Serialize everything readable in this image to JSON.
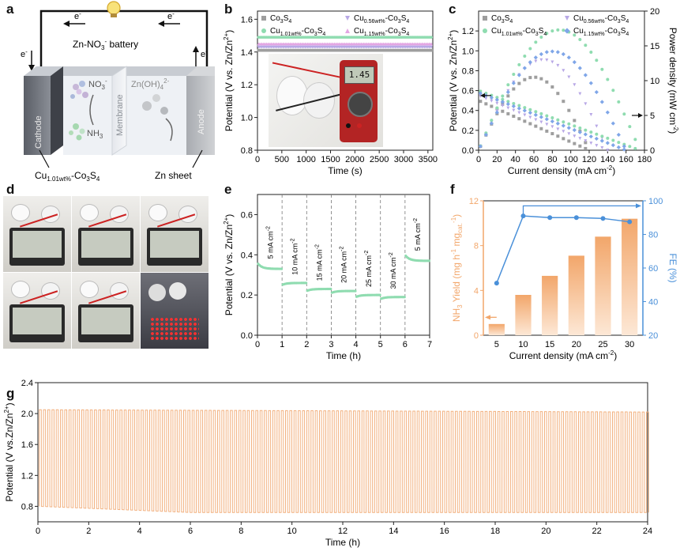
{
  "panels": {
    "a": {
      "letter": "a",
      "title": "Zn-NO",
      "title_sub": "3",
      "title_sup": "-",
      "title_tail": " battery",
      "electron": "e",
      "electron_sup": "-",
      "cathode": "Cathode",
      "membrane": "Membrane",
      "anode": "Anode",
      "no3": "NO",
      "no3_sub": "3",
      "no3_sup": "-",
      "nh3": "NH",
      "nh3_sub": "3",
      "znoh": "Zn(OH)",
      "znoh_sub": "4",
      "znoh_sup": "2-",
      "cathode_label": "Cu",
      "cathode_label_sub": "1.01wt%",
      "cathode_label_tail": "-Co",
      "cathode_label_sub2": "3",
      "cathode_label_s": "S",
      "cathode_label_sub3": "4",
      "anode_label": "Zn sheet"
    },
    "b": {
      "letter": "b",
      "meter_reading": "1.45"
    },
    "c": {
      "letter": "c"
    },
    "d": {
      "letter": "d"
    },
    "e": {
      "letter": "e"
    },
    "f": {
      "letter": "f"
    },
    "g": {
      "letter": "g"
    }
  },
  "colors": {
    "co3s4": "#9e9e9e",
    "cu056": "#b8a8e6",
    "cu101": "#8fdcb0",
    "cu115": "#7fa6e8",
    "orange": "#f2a66a",
    "blue": "#4a90d9",
    "gcd": "#f2b07e"
  },
  "chart_data": [
    {
      "panel": "b",
      "type": "line",
      "xlabel": "Time (s)",
      "ylabel": "Potential (V vs. Zn/Zn2+)",
      "xlim": [
        0,
        3600
      ],
      "ylim": [
        0.8,
        1.65
      ],
      "xticks": [
        0,
        500,
        1000,
        1500,
        2000,
        2500,
        3000,
        3500
      ],
      "yticks": [
        0.8,
        1.0,
        1.2,
        1.4,
        1.6
      ],
      "legend": [
        {
          "label": "Co3S4",
          "text": "Co",
          "sub": "3",
          "tail": "S",
          "sub2": "4",
          "marker": "square",
          "color": "#9e9e9e"
        },
        {
          "label": "Cu0.56wt%-Co3S4",
          "text": "Cu",
          "sub": "0.56wt%",
          "tail": "-Co",
          "sub2": "3",
          "tail2": "S",
          "sub3": "4",
          "marker": "tri-down",
          "color": "#b8a8e6"
        },
        {
          "label": "Cu1.01wt%-Co3S4",
          "text": "Cu",
          "sub": "1.01wt%",
          "tail": "-Co",
          "sub2": "3",
          "tail2": "S",
          "sub3": "4",
          "marker": "hexagon",
          "color": "#8fdcb0"
        },
        {
          "label": "Cu1.15wt%-Co3S4",
          "text": "Cu",
          "sub": "1.15wt%",
          "tail": "-Co",
          "sub2": "3",
          "tail2": "S",
          "sub3": "4",
          "marker": "tri-up",
          "color": "#e3a6e3"
        }
      ],
      "series": [
        {
          "name": "Co3S4",
          "y": 1.41
        },
        {
          "name": "Cu0.56wt%-Co3S4",
          "y": 1.43
        },
        {
          "name": "Cu1.01wt%-Co3S4",
          "y": 1.49
        },
        {
          "name": "Cu1.15wt%-Co3S4",
          "y": 1.45
        }
      ]
    },
    {
      "panel": "c",
      "type": "scatter",
      "xlabel": "Current density (mA cm-2)",
      "ylabel": "Potential (V vs. Zn/Zn2+)",
      "y2label": "Power density (mW cm-2)",
      "xlim": [
        0,
        180
      ],
      "ylim": [
        0,
        1.4
      ],
      "y2lim": [
        0,
        20
      ],
      "xticks": [
        0,
        20,
        40,
        60,
        80,
        100,
        120,
        140,
        160,
        180
      ],
      "yticks": [
        0.0,
        0.2,
        0.4,
        0.6,
        0.8,
        1.0,
        1.2
      ],
      "y2ticks": [
        0,
        5,
        10,
        15,
        20
      ],
      "legend": [
        {
          "label": "Co3S4",
          "text": "Co",
          "sub": "3",
          "tail": "S",
          "sub2": "4",
          "marker": "square",
          "color": "#9e9e9e"
        },
        {
          "label": "Cu0.56wt%-Co3S4",
          "text": "Cu",
          "sub": "0.56wt%",
          "tail": "-Co",
          "sub2": "3",
          "tail2": "S",
          "sub3": "4",
          "marker": "tri-down",
          "color": "#b8a8e6"
        },
        {
          "label": "Cu1.01wt%-Co3S4",
          "text": "Cu",
          "sub": "1.01wt%",
          "tail": "-Co",
          "sub2": "3",
          "tail2": "S",
          "sub3": "4",
          "marker": "hexagon",
          "color": "#8fdcb0"
        },
        {
          "label": "Cu1.15wt%-Co3S4",
          "text": "Cu",
          "sub": "1.15wt%",
          "tail": "-Co",
          "sub2": "3",
          "tail2": "S",
          "sub3": "4",
          "marker": "diamond",
          "color": "#7fa6e8"
        }
      ],
      "series": [
        {
          "name": "Co3S4",
          "imax": 120,
          "v0": 0.5,
          "peak_power": 10.5
        },
        {
          "name": "Cu0.56wt%-Co3S4",
          "imax": 140,
          "v0": 0.55,
          "peak_power": 13.0
        },
        {
          "name": "Cu1.01wt%-Co3S4",
          "imax": 175,
          "v0": 0.6,
          "peak_power": 17.3
        },
        {
          "name": "Cu1.15wt%-Co3S4",
          "imax": 160,
          "v0": 0.58,
          "peak_power": 14.2
        }
      ]
    },
    {
      "panel": "e",
      "type": "line",
      "xlabel": "Time (h)",
      "ylabel": "Potential (V vs. Zn/Zn2+)",
      "xlim": [
        0,
        7
      ],
      "ylim": [
        0.0,
        0.7
      ],
      "xticks": [
        0,
        1,
        2,
        3,
        4,
        5,
        6,
        7
      ],
      "yticks": [
        0.0,
        0.2,
        0.4,
        0.6
      ],
      "segments": [
        {
          "t0": 0,
          "t1": 1,
          "v": 0.33,
          "label": "5 mA cm-2",
          "text": "5 mA cm",
          "sup": "-2"
        },
        {
          "t0": 1,
          "t1": 2,
          "v": 0.25,
          "label": "10 mA cm-2",
          "text": "10 mA cm",
          "sup": "-2"
        },
        {
          "t0": 2,
          "t1": 3,
          "v": 0.22,
          "label": "15 mA cm-2",
          "text": "15 mA cm",
          "sup": "-2"
        },
        {
          "t0": 3,
          "t1": 4,
          "v": 0.21,
          "label": "20 mA cm-2",
          "text": "20 mA cm",
          "sup": "-2"
        },
        {
          "t0": 4,
          "t1": 5,
          "v": 0.19,
          "label": "25 mA cm-2",
          "text": "25 mA cm",
          "sup": "-2"
        },
        {
          "t0": 5,
          "t1": 6,
          "v": 0.18,
          "label": "30 mA cm-2",
          "text": "30 mA cm",
          "sup": "-2"
        },
        {
          "t0": 6,
          "t1": 7,
          "v": 0.37,
          "label": "5 mA cm-2",
          "text": "5 mA cm",
          "sup": "-2"
        }
      ]
    },
    {
      "panel": "f",
      "type": "bar",
      "xlabel": "Current density (mA cm-2)",
      "ylabel": "NH3 Yield (mg h-1 mgcat.-1)",
      "y2label": "FE (%)",
      "categories": [
        "5",
        "10",
        "15",
        "20",
        "25",
        "30"
      ],
      "ylim": [
        0,
        12
      ],
      "y2lim": [
        20,
        100
      ],
      "yticks": [
        0,
        4,
        8,
        12
      ],
      "y2ticks": [
        20,
        40,
        60,
        80,
        100
      ],
      "series": [
        {
          "name": "NH3 Yield",
          "values": [
            1.0,
            3.6,
            5.3,
            7.1,
            8.8,
            10.4
          ]
        },
        {
          "name": "FE",
          "values": [
            51,
            91,
            90,
            90,
            89.5,
            87.5
          ]
        }
      ]
    },
    {
      "panel": "g",
      "type": "line",
      "xlabel": "Time (h)",
      "ylabel": "Potential (V vs.Zn/Zn2+)",
      "xlim": [
        0,
        24
      ],
      "ylim": [
        0.6,
        2.4
      ],
      "xticks": [
        0,
        2,
        4,
        6,
        8,
        10,
        12,
        14,
        16,
        18,
        20,
        22,
        24
      ],
      "yticks": [
        0.8,
        1.2,
        1.6,
        2.0,
        2.4
      ],
      "charge_v_start": 2.05,
      "charge_v_end": 2.02,
      "discharge_v_start": 0.8,
      "discharge_v_end": 0.72,
      "cycles": 144
    }
  ]
}
